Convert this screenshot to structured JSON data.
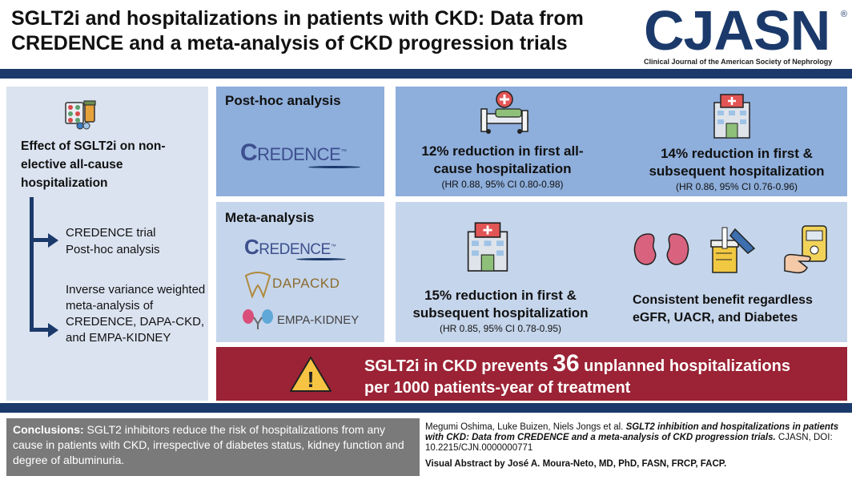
{
  "header": {
    "title": "SGLT2i and hospitalizations in patients with CKD: Data from CREDENCE and a meta-analysis of CKD progression trials",
    "logo_text": "CJASN",
    "logo_registered": "®",
    "logo_subtitle": "Clinical Journal of the American Society of Nephrology"
  },
  "left": {
    "effect_title": "Effect of SGLT2i on non-elective all-cause hospitalization",
    "trial_line1": "CREDENCE trial",
    "trial_line2": "Post-hoc analysis",
    "inverse_text": "Inverse variance weighted meta-analysis of CREDENCE, DAPA-CKD, and EMPA-KIDNEY"
  },
  "posthoc": {
    "heading": "Post-hoc analysis",
    "logo_c": "C",
    "logo_rest": "REDENCE",
    "logo_tm": "™"
  },
  "meta": {
    "heading": "Meta-analysis",
    "credence_c": "C",
    "credence_rest": "REDENCE",
    "credence_tm": "™",
    "dapa": "DAPACKD",
    "empa": "EMPA-KIDNEY"
  },
  "results": {
    "r1_stat": "12% reduction in first all-cause hospitalization",
    "r1_ci": "(HR 0.88, 95% CI 0.80-0.98)",
    "r2_stat": "14% reduction in first & subsequent hospitalization",
    "r2_ci": "(HR 0.86, 95% CI 0.76-0.96)",
    "r3_stat": "15% reduction in first & subsequent hospitalization",
    "r3_ci": "(HR 0.85, 95% CI 0.78-0.95)",
    "r4_text": "Consistent benefit regardless eGFR, UACR, and Diabetes"
  },
  "banner": {
    "part1": "SGLT2i in CKD prevents ",
    "number": "36",
    "part2": " unplanned hospitalizations",
    "line2": "per 1000 patients-year of treatment",
    "warning_glyph": "!"
  },
  "footer": {
    "conclusions_label": "Conclusions:",
    "conclusions_text": " SGLT2 inhibitors reduce the risk of hospitalizations from any cause in patients with CKD, irrespective of diabetes status, kidney function and degree of albuminuria.",
    "authors": "Megumi Oshima, Luke Buizen, Niels Jongs et al. ",
    "article_title": "SGLT2 inhibition and hospitalizations in patients with CKD: Data from CREDENCE and a meta-analysis of CKD progression trials.",
    "journal_info": " CJASN, DOI: 10.2215/CJN.0000000771",
    "credit": "Visual Abstract by José A. Moura-Neto, MD, PhD, FASN, FRCP, FACP."
  },
  "colors": {
    "navy": "#1b3a6b",
    "banner_red": "#9b2335",
    "panel_light": "#c5d5eb",
    "panel_mid": "#8eaedb"
  }
}
